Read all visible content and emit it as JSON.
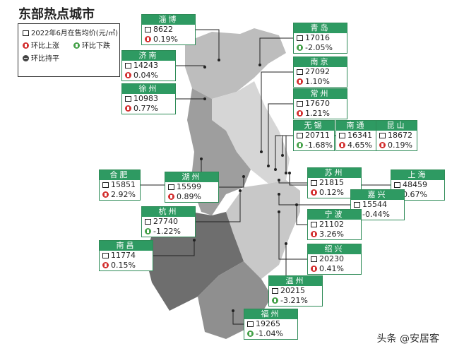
{
  "title": "东部热点城市",
  "legend": {
    "caption": "2022年6月在售均价(元/㎡)",
    "up": "环比上涨",
    "down": "环比下跌",
    "flat": "环比持平"
  },
  "cities": [
    {
      "name": "淄博",
      "price": "8622",
      "change": "0.19%"
    },
    {
      "name": "青岛",
      "price": "17016",
      "change": "-2.05%"
    },
    {
      "name": "济南",
      "price": "14243",
      "change": "0.04%"
    },
    {
      "name": "南京",
      "price": "27092",
      "change": "1.10%"
    },
    {
      "name": "徐州",
      "price": "10983",
      "change": "0.77%"
    },
    {
      "name": "常州",
      "price": "17670",
      "change": "1.21%"
    },
    {
      "name": "无锡",
      "price": "20711",
      "change": "-1.68%"
    },
    {
      "name": "南通",
      "price": "16341",
      "change": "4.65%"
    },
    {
      "name": "昆山",
      "price": "18672",
      "change": "0.19%"
    },
    {
      "name": "合肥",
      "price": "15851",
      "change": "2.92%"
    },
    {
      "name": "湖州",
      "price": "15599",
      "change": "0.89%"
    },
    {
      "name": "苏州",
      "price": "21815",
      "change": "0.12%"
    },
    {
      "name": "上海",
      "price": "48459",
      "change": "0.67%"
    },
    {
      "name": "嘉兴",
      "price": "15544",
      "change": "-0.44%"
    },
    {
      "name": "杭州",
      "price": "27740",
      "change": "-1.22%"
    },
    {
      "name": "宁波",
      "price": "21102",
      "change": "3.26%"
    },
    {
      "name": "南昌",
      "price": "11774",
      "change": "0.15%"
    },
    {
      "name": "绍兴",
      "price": "20230",
      "change": "0.41%"
    },
    {
      "name": "温州",
      "price": "20215",
      "change": "-3.21%"
    },
    {
      "name": "福州",
      "price": "19265",
      "change": "-1.04%"
    }
  ],
  "watermark": "头条 @安居客"
}
